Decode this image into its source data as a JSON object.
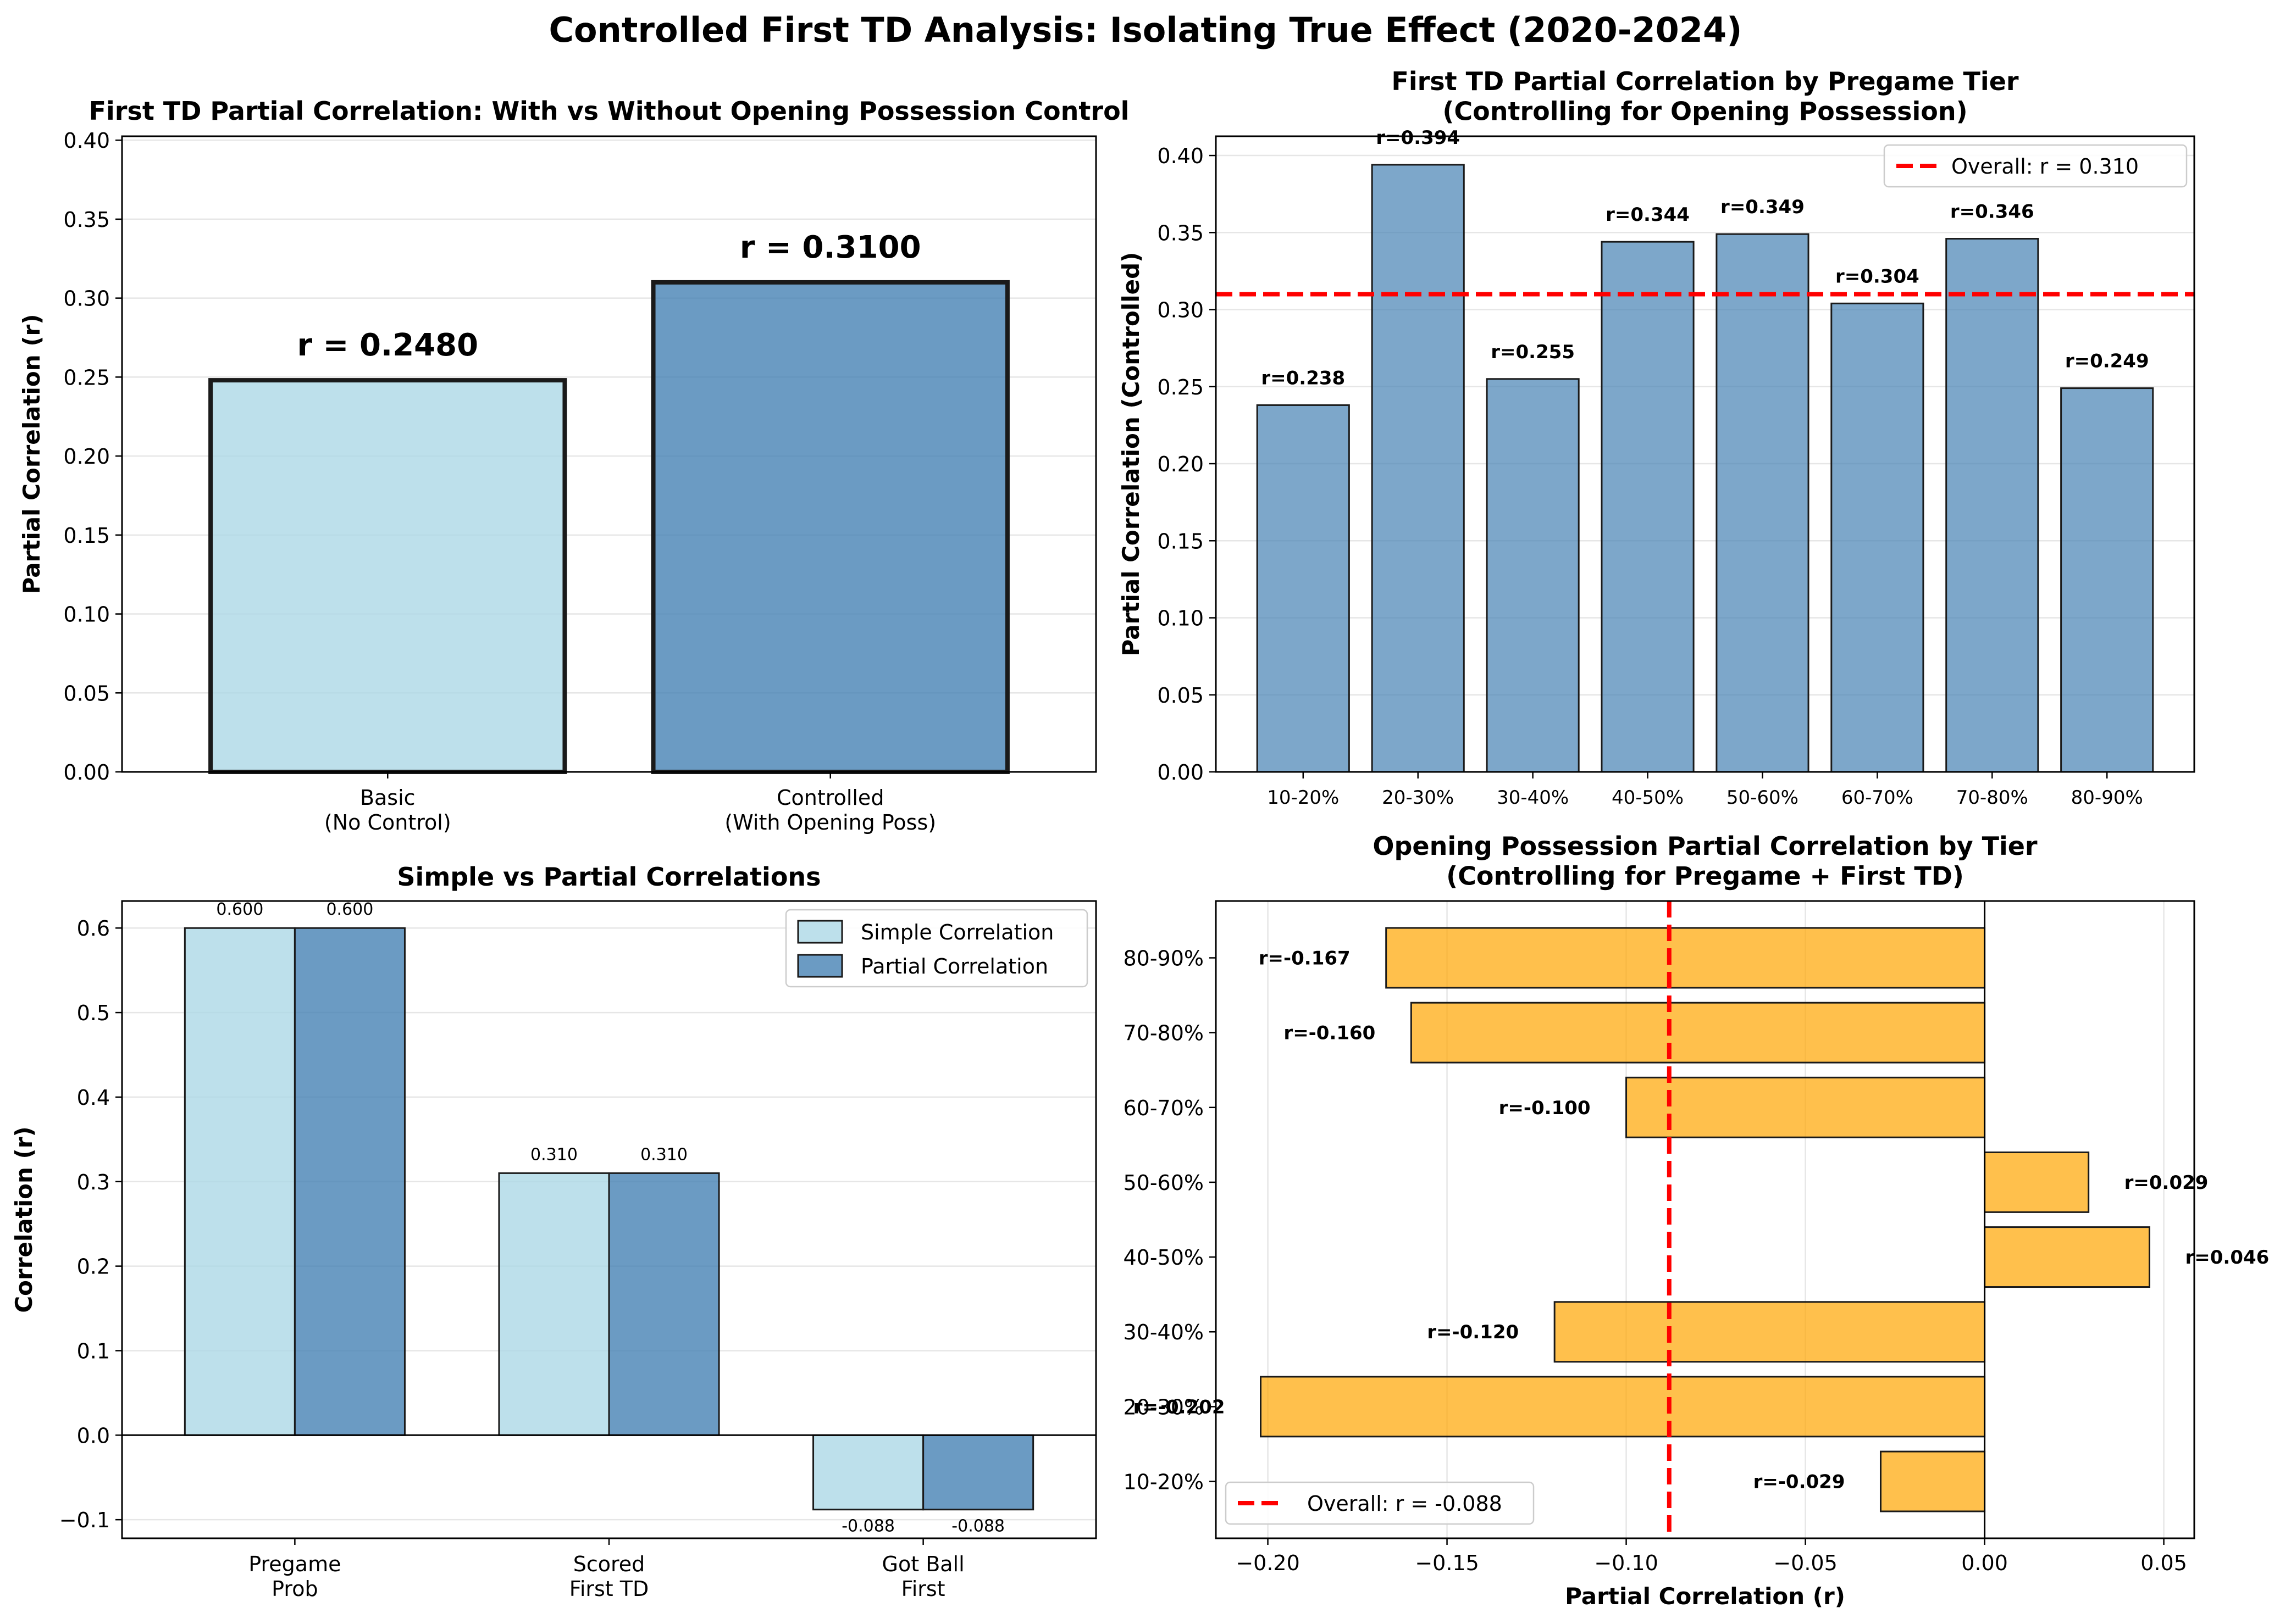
{
  "figure_title": "Controlled First TD Analysis: Isolating True Effect (2020-2024)",
  "colors": {
    "light_blue": "#add8e6",
    "steel_blue": "#4682b4",
    "orange": "#ffa500",
    "red_line": "#ff0000",
    "edge": "#1a1a1a"
  },
  "chart_data": [
    {
      "type": "bar",
      "title": "First TD Partial Correlation: With vs Without Opening Possession Control",
      "ylabel": "Partial Correlation (r)",
      "xlabel": "",
      "ylim": [
        0,
        0.4025
      ],
      "yticks": [
        0.0,
        0.05,
        0.1,
        0.15,
        0.2,
        0.25,
        0.3,
        0.35,
        0.4
      ],
      "ytick_labels": [
        "0.00",
        "0.05",
        "0.10",
        "0.15",
        "0.20",
        "0.25",
        "0.30",
        "0.35",
        "0.40"
      ],
      "categories": [
        "Basic\n(No Control)",
        "Controlled\n(With Opening Poss)"
      ],
      "values": [
        0.248,
        0.31
      ],
      "value_labels": [
        "r = 0.2480",
        "r = 0.3100"
      ],
      "grid": "y"
    },
    {
      "type": "bar",
      "title": "First TD Partial Correlation by Pregame Tier\n(Controlling for Opening Possession)",
      "ylabel": "Partial Correlation (Controlled)",
      "xlabel": "",
      "ylim": [
        0,
        0.4125
      ],
      "yticks": [
        0.0,
        0.05,
        0.1,
        0.15,
        0.2,
        0.25,
        0.3,
        0.35,
        0.4
      ],
      "ytick_labels": [
        "0.00",
        "0.05",
        "0.10",
        "0.15",
        "0.20",
        "0.25",
        "0.30",
        "0.35",
        "0.40"
      ],
      "categories": [
        "10-20%",
        "20-30%",
        "30-40%",
        "40-50%",
        "50-60%",
        "60-70%",
        "70-80%",
        "80-90%"
      ],
      "values": [
        0.238,
        0.394,
        0.255,
        0.344,
        0.349,
        0.304,
        0.346,
        0.249
      ],
      "value_labels": [
        "r=0.238",
        "r=0.394",
        "r=0.255",
        "r=0.344",
        "r=0.349",
        "r=0.304",
        "r=0.346",
        "r=0.249"
      ],
      "reference_line": {
        "value": 0.31,
        "label": "Overall: r = 0.310"
      },
      "legend": "top-right",
      "grid": "y"
    },
    {
      "type": "bar",
      "title": "Simple vs Partial Correlations",
      "ylabel": "Correlation (r)",
      "xlabel": "",
      "ylim": [
        -0.122,
        0.632
      ],
      "yticks": [
        -0.1,
        0.0,
        0.1,
        0.2,
        0.3,
        0.4,
        0.5,
        0.6
      ],
      "ytick_labels": [
        "−0.1",
        "0.0",
        "0.1",
        "0.2",
        "0.3",
        "0.4",
        "0.5",
        "0.6"
      ],
      "categories": [
        "Pregame\nProb",
        "Scored\nFirst TD",
        "Got Ball\nFirst"
      ],
      "series": [
        {
          "name": "Simple Correlation",
          "values": [
            0.6,
            0.31,
            -0.088
          ],
          "labels": [
            "0.600",
            "0.310",
            "-0.088"
          ]
        },
        {
          "name": "Partial Correlation",
          "values": [
            0.6,
            0.31,
            -0.088
          ],
          "labels": [
            "0.600",
            "0.310",
            "-0.088"
          ]
        }
      ],
      "legend": "top-right",
      "grid": "y"
    },
    {
      "type": "bar",
      "orientation": "horizontal",
      "title": "Opening Possession Partial Correlation by Tier\n(Controlling for Pregame + First TD)",
      "xlabel": "Partial Correlation (r)",
      "ylabel": "",
      "xlim": [
        -0.2145,
        0.0585
      ],
      "xticks": [
        -0.2,
        -0.15,
        -0.1,
        -0.05,
        0.0,
        0.05
      ],
      "xtick_labels": [
        "−0.20",
        "−0.15",
        "−0.10",
        "−0.05",
        "0.00",
        "0.05"
      ],
      "categories": [
        "10-20%",
        "20-30%",
        "30-40%",
        "40-50%",
        "50-60%",
        "60-70%",
        "70-80%",
        "80-90%"
      ],
      "values": [
        -0.029,
        -0.202,
        -0.12,
        0.046,
        0.029,
        -0.1,
        -0.16,
        -0.167
      ],
      "value_labels": [
        "r=-0.029",
        "r=-0.202",
        "r=-0.120",
        "r=0.046",
        "r=0.029",
        "r=-0.100",
        "r=-0.160",
        "r=-0.167"
      ],
      "reference_line": {
        "value": -0.088,
        "label": "Overall: r = -0.088"
      },
      "legend": "bottom-left",
      "grid": "x"
    }
  ]
}
